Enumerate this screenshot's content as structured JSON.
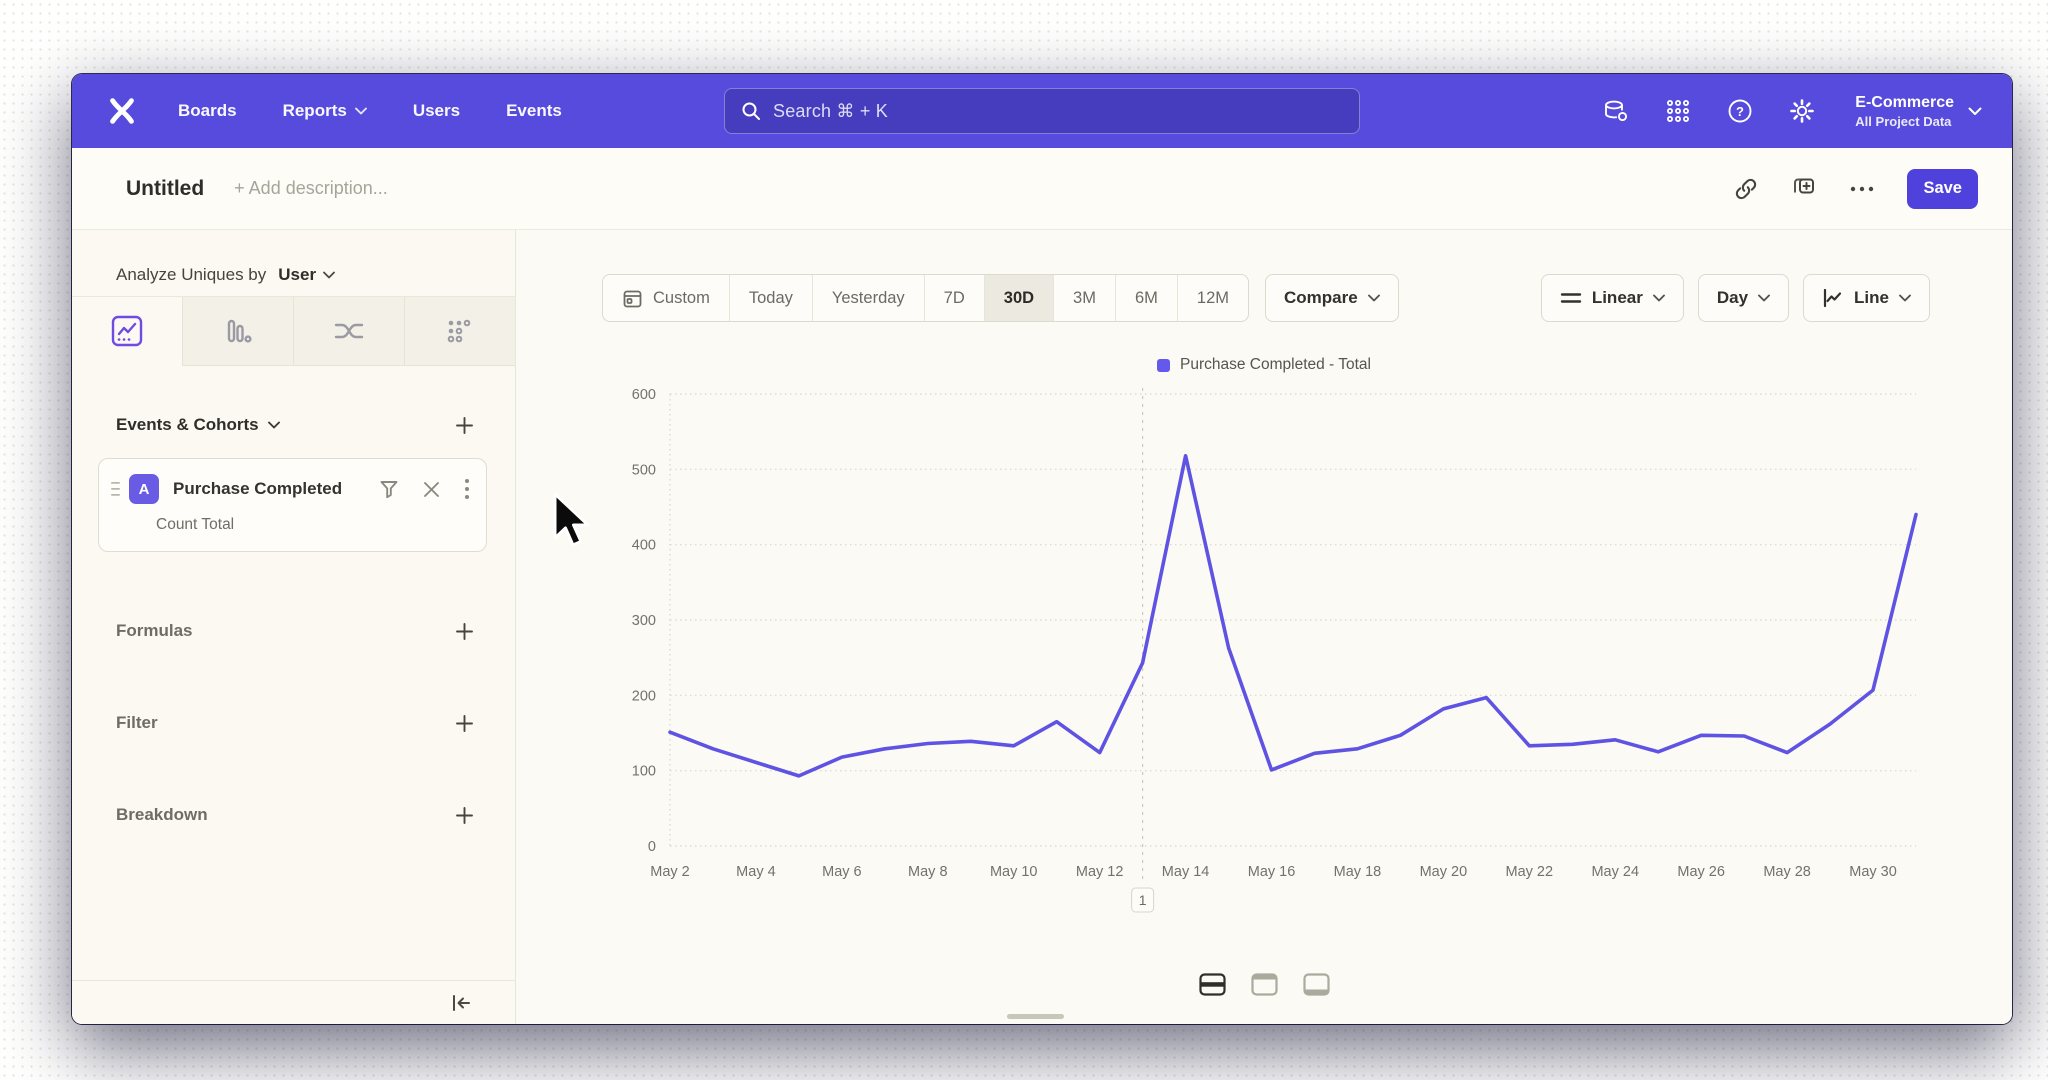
{
  "top_nav": {
    "items": [
      {
        "label": "Boards",
        "chevron": false
      },
      {
        "label": "Reports",
        "chevron": true
      },
      {
        "label": "Users",
        "chevron": false
      },
      {
        "label": "Events",
        "chevron": false
      }
    ],
    "search_placeholder": "Search  ⌘ + K",
    "project_name": "E-Commerce",
    "project_subtitle": "All Project Data"
  },
  "report_header": {
    "title": "Untitled",
    "description_placeholder": "+ Add description...",
    "save_label": "Save"
  },
  "sidebar": {
    "analyze_prefix": "Analyze Uniques by",
    "analyze_value": "User",
    "events_section_title": "Events & Cohorts",
    "event_card": {
      "badge": "A",
      "name": "Purchase Completed",
      "metric": "Count Total"
    },
    "sections": [
      {
        "label": "Formulas"
      },
      {
        "label": "Filter"
      },
      {
        "label": "Breakdown"
      }
    ]
  },
  "toolbar": {
    "ranges": [
      "Custom",
      "Today",
      "Yesterday",
      "7D",
      "30D",
      "3M",
      "6M",
      "12M"
    ],
    "active_range": "30D",
    "compare_label": "Compare",
    "scale_label": "Linear",
    "granularity_label": "Day",
    "chart_type_label": "Line"
  },
  "chart_data": {
    "type": "line",
    "legend": [
      "Purchase Completed - Total"
    ],
    "legend_position": "top-center",
    "x": [
      "May 2",
      "May 3",
      "May 4",
      "May 5",
      "May 6",
      "May 7",
      "May 8",
      "May 9",
      "May 10",
      "May 11",
      "May 12",
      "May 13",
      "May 14",
      "May 15",
      "May 16",
      "May 17",
      "May 18",
      "May 19",
      "May 20",
      "May 21",
      "May 22",
      "May 23",
      "May 24",
      "May 25",
      "May 26",
      "May 27",
      "May 28",
      "May 29",
      "May 30",
      "May 31"
    ],
    "series": [
      {
        "name": "Purchase Completed - Total",
        "color": "#5F53E3",
        "values": [
          151,
          129,
          111,
          93,
          118,
          129,
          136,
          139,
          133,
          165,
          124,
          243,
          518,
          263,
          101,
          123,
          129,
          147,
          182,
          197,
          133,
          135,
          141,
          125,
          147,
          146,
          124,
          162,
          207,
          440
        ]
      }
    ],
    "ylim": [
      0,
      600
    ],
    "yticks": [
      0,
      100,
      200,
      300,
      400,
      500,
      600
    ],
    "x_label_every": 2,
    "grid": "dotted-horizontal",
    "annotations": [
      {
        "label": "1",
        "date": "May 13"
      }
    ]
  },
  "footer": {
    "layout_modes": [
      "split",
      "top-panel",
      "bottom-panel"
    ],
    "active_mode": "split"
  },
  "colors": {
    "nav_bg": "#574BDD",
    "save_button": "#4F41DB",
    "line": "#5F53E3",
    "legend_swatch": "#6459EA",
    "active_tab_icon": "#6F4BE3",
    "event_badge_bg": "#6A5BE4"
  }
}
